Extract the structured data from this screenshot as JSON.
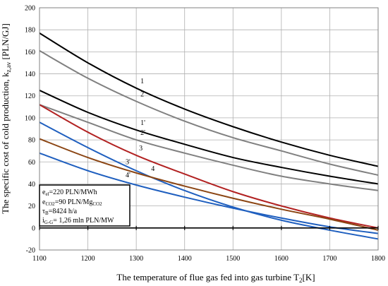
{
  "chart_data": {
    "type": "line",
    "xlabel_main": "The temperature of flue gas fed into gas turbine T",
    "xlabel_sub": "2",
    "xlabel_unit": "[K]",
    "ylabel_main": "The specific cost of cold production, k",
    "ylabel_sub": "z,av",
    "ylabel_unit": " [PLN/GJ]",
    "xlim": [
      1100,
      1800
    ],
    "ylim": [
      -20,
      200
    ],
    "xticks": [
      1100,
      1200,
      1300,
      1400,
      1500,
      1600,
      1700,
      1800
    ],
    "yticks": [
      -20,
      0,
      20,
      40,
      60,
      80,
      100,
      120,
      140,
      160,
      180,
      200
    ],
    "grid": true,
    "series": [
      {
        "name": "1",
        "color": "#000000",
        "x": [
          1100,
          1200,
          1300,
          1400,
          1500,
          1600,
          1700,
          1800
        ],
        "y": [
          177,
          150,
          127,
          108,
          92,
          78,
          66,
          56
        ]
      },
      {
        "name": "2",
        "color": "#808080",
        "x": [
          1100,
          1200,
          1300,
          1400,
          1500,
          1600,
          1700,
          1800
        ],
        "y": [
          161,
          136,
          115,
          97,
          82,
          70,
          58,
          48
        ]
      },
      {
        "name": "1'",
        "color": "#000000",
        "x": [
          1100,
          1200,
          1300,
          1400,
          1500,
          1600,
          1700,
          1800
        ],
        "y": [
          125,
          105,
          89,
          76,
          64,
          55,
          47,
          40
        ]
      },
      {
        "name": "2'",
        "color": "#808080",
        "x": [
          1100,
          1200,
          1300,
          1400,
          1500,
          1600,
          1700,
          1800
        ],
        "y": [
          112,
          96,
          80,
          68,
          57,
          47,
          40,
          34
        ]
      },
      {
        "name": "3",
        "color": "#b22222",
        "x": [
          1100,
          1200,
          1300,
          1400,
          1500,
          1600,
          1700,
          1800
        ],
        "y": [
          112,
          87,
          66,
          49,
          33,
          20,
          9,
          0
        ]
      },
      {
        "name": "4",
        "color": "#1f5fbf",
        "x": [
          1100,
          1200,
          1300,
          1400,
          1500,
          1600,
          1700,
          1800
        ],
        "y": [
          96,
          73,
          52,
          34,
          19,
          7,
          -2,
          -10
        ]
      },
      {
        "name": "3'",
        "color": "#8b4513",
        "x": [
          1100,
          1200,
          1300,
          1400,
          1500,
          1600,
          1700,
          1800
        ],
        "y": [
          81,
          64,
          50,
          38,
          27,
          17,
          8,
          -2
        ]
      },
      {
        "name": "4'",
        "color": "#1f5fbf",
        "x": [
          1100,
          1200,
          1300,
          1400,
          1500,
          1600,
          1700,
          1800
        ],
        "y": [
          68,
          52,
          39,
          28,
          18,
          9,
          1,
          -5
        ]
      }
    ],
    "annotations": {
      "line1_main": "e",
      "line1_sub": "el",
      "line1_rest": "=220 PLN/MWh",
      "line2_main": "e",
      "line2_sub": "CO2",
      "line2_rest": "=90 PLN/Mg",
      "line2_sub2": "CO2",
      "line3_main": "τ",
      "line3_sub": "B",
      "line3_rest": "=8424 h/a",
      "line4_main": "i",
      "line4_sub": "G-G",
      "line4_rest": "= 1,26 mln PLN/MW"
    }
  }
}
